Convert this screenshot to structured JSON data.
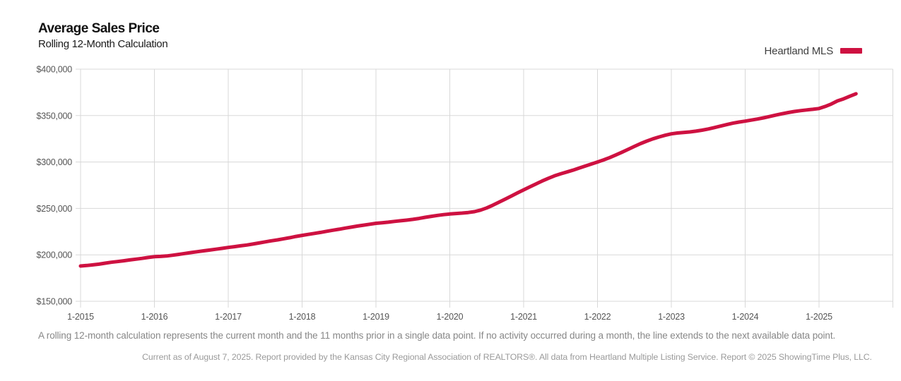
{
  "header": {
    "title": "Average Sales Price",
    "subtitle": "Rolling 12-Month Calculation"
  },
  "legend": {
    "label": "Heartland MLS",
    "color": "#CE1141"
  },
  "footnote": "A rolling 12-month calculation represents the current month and the 11 months prior in a single data point. If no activity occurred during a month, the line extends to the next available data point.",
  "attribution": "Current as of August 7, 2025. Report provided by the Kansas City Regional Association of REALTORS®. All data from Heartland Multiple Listing Service. Report © 2025 ShowingTime Plus, LLC.",
  "chart_data": {
    "type": "line",
    "title": "Average Sales Price",
    "subtitle": "Rolling 12-Month Calculation",
    "xlabel": "",
    "ylabel": "",
    "xlim": [
      "1-2015",
      "1-2026"
    ],
    "ylim": [
      150000,
      400000
    ],
    "grid": true,
    "grid_color": "#d8d8d8",
    "tick_color": "#555555",
    "legend_position": "top-right",
    "x_tick_labels": [
      "1-2015",
      "1-2016",
      "1-2017",
      "1-2018",
      "1-2019",
      "1-2020",
      "1-2021",
      "1-2022",
      "1-2023",
      "1-2024",
      "1-2025"
    ],
    "y_ticks": [
      150000,
      200000,
      250000,
      300000,
      350000,
      400000
    ],
    "y_tick_labels": [
      "$150,000",
      "$200,000",
      "$250,000",
      "$300,000",
      "$350,000",
      "$400,000"
    ],
    "series": [
      {
        "name": "Heartland MLS",
        "color": "#CE1141",
        "points": [
          [
            "1-2015",
            188000
          ],
          [
            "2-2015",
            188500
          ],
          [
            "3-2015",
            189200
          ],
          [
            "4-2015",
            190000
          ],
          [
            "5-2015",
            191000
          ],
          [
            "6-2015",
            192000
          ],
          [
            "7-2015",
            192800
          ],
          [
            "8-2015",
            193600
          ],
          [
            "9-2015",
            194500
          ],
          [
            "10-2015",
            195400
          ],
          [
            "11-2015",
            196200
          ],
          [
            "12-2015",
            197200
          ],
          [
            "1-2016",
            198000
          ],
          [
            "2-2016",
            198300
          ],
          [
            "3-2016",
            198800
          ],
          [
            "4-2016",
            199600
          ],
          [
            "5-2016",
            200500
          ],
          [
            "6-2016",
            201500
          ],
          [
            "7-2016",
            202500
          ],
          [
            "8-2016",
            203400
          ],
          [
            "9-2016",
            204300
          ],
          [
            "10-2016",
            205200
          ],
          [
            "11-2016",
            206100
          ],
          [
            "12-2016",
            207000
          ],
          [
            "1-2017",
            208000
          ],
          [
            "2-2017",
            208800
          ],
          [
            "3-2017",
            209700
          ],
          [
            "4-2017",
            210600
          ],
          [
            "5-2017",
            211600
          ],
          [
            "6-2017",
            212800
          ],
          [
            "7-2017",
            214000
          ],
          [
            "8-2017",
            215100
          ],
          [
            "9-2017",
            216100
          ],
          [
            "10-2017",
            217300
          ],
          [
            "11-2017",
            218500
          ],
          [
            "12-2017",
            219800
          ],
          [
            "1-2018",
            221000
          ],
          [
            "2-2018",
            222000
          ],
          [
            "3-2018",
            223100
          ],
          [
            "4-2018",
            224200
          ],
          [
            "5-2018",
            225400
          ],
          [
            "6-2018",
            226500
          ],
          [
            "7-2018",
            227600
          ],
          [
            "8-2018",
            228800
          ],
          [
            "9-2018",
            229900
          ],
          [
            "10-2018",
            231000
          ],
          [
            "11-2018",
            232000
          ],
          [
            "12-2018",
            233000
          ],
          [
            "1-2019",
            234000
          ],
          [
            "2-2019",
            234600
          ],
          [
            "3-2019",
            235200
          ],
          [
            "4-2019",
            236000
          ],
          [
            "5-2019",
            236700
          ],
          [
            "6-2019",
            237400
          ],
          [
            "7-2019",
            238200
          ],
          [
            "8-2019",
            239200
          ],
          [
            "9-2019",
            240400
          ],
          [
            "10-2019",
            241500
          ],
          [
            "11-2019",
            242500
          ],
          [
            "12-2019",
            243300
          ],
          [
            "1-2020",
            244000
          ],
          [
            "2-2020",
            244500
          ],
          [
            "3-2020",
            245000
          ],
          [
            "4-2020",
            245600
          ],
          [
            "5-2020",
            246500
          ],
          [
            "6-2020",
            248200
          ],
          [
            "7-2020",
            250500
          ],
          [
            "8-2020",
            253500
          ],
          [
            "9-2020",
            256800
          ],
          [
            "10-2020",
            260000
          ],
          [
            "11-2020",
            263300
          ],
          [
            "12-2020",
            266700
          ],
          [
            "1-2021",
            270000
          ],
          [
            "2-2021",
            273200
          ],
          [
            "3-2021",
            276400
          ],
          [
            "4-2021",
            279500
          ],
          [
            "5-2021",
            282400
          ],
          [
            "6-2021",
            285000
          ],
          [
            "7-2021",
            287200
          ],
          [
            "8-2021",
            289200
          ],
          [
            "9-2021",
            291200
          ],
          [
            "10-2021",
            293400
          ],
          [
            "11-2021",
            295600
          ],
          [
            "12-2021",
            297800
          ],
          [
            "1-2022",
            300000
          ],
          [
            "2-2022",
            302300
          ],
          [
            "3-2022",
            304800
          ],
          [
            "4-2022",
            307600
          ],
          [
            "5-2022",
            310600
          ],
          [
            "6-2022",
            313700
          ],
          [
            "7-2022",
            316800
          ],
          [
            "8-2022",
            319800
          ],
          [
            "9-2022",
            322500
          ],
          [
            "10-2022",
            324900
          ],
          [
            "11-2022",
            327000
          ],
          [
            "12-2022",
            328800
          ],
          [
            "1-2023",
            330300
          ],
          [
            "2-2023",
            331200
          ],
          [
            "3-2023",
            331800
          ],
          [
            "4-2023",
            332400
          ],
          [
            "5-2023",
            333200
          ],
          [
            "6-2023",
            334300
          ],
          [
            "7-2023",
            335600
          ],
          [
            "8-2023",
            337100
          ],
          [
            "9-2023",
            338700
          ],
          [
            "10-2023",
            340300
          ],
          [
            "11-2023",
            341800
          ],
          [
            "12-2023",
            343000
          ],
          [
            "1-2024",
            344000
          ],
          [
            "2-2024",
            345100
          ],
          [
            "3-2024",
            346300
          ],
          [
            "4-2024",
            347600
          ],
          [
            "5-2024",
            349000
          ],
          [
            "6-2024",
            350500
          ],
          [
            "7-2024",
            352000
          ],
          [
            "8-2024",
            353300
          ],
          [
            "9-2024",
            354400
          ],
          [
            "10-2024",
            355300
          ],
          [
            "11-2024",
            356100
          ],
          [
            "12-2024",
            356800
          ],
          [
            "1-2025",
            357600
          ],
          [
            "2-2025",
            359800
          ],
          [
            "3-2025",
            362500
          ],
          [
            "4-2025",
            365800
          ],
          [
            "5-2025",
            368000
          ],
          [
            "6-2025",
            370800
          ],
          [
            "7-2025",
            373500
          ]
        ]
      }
    ]
  }
}
